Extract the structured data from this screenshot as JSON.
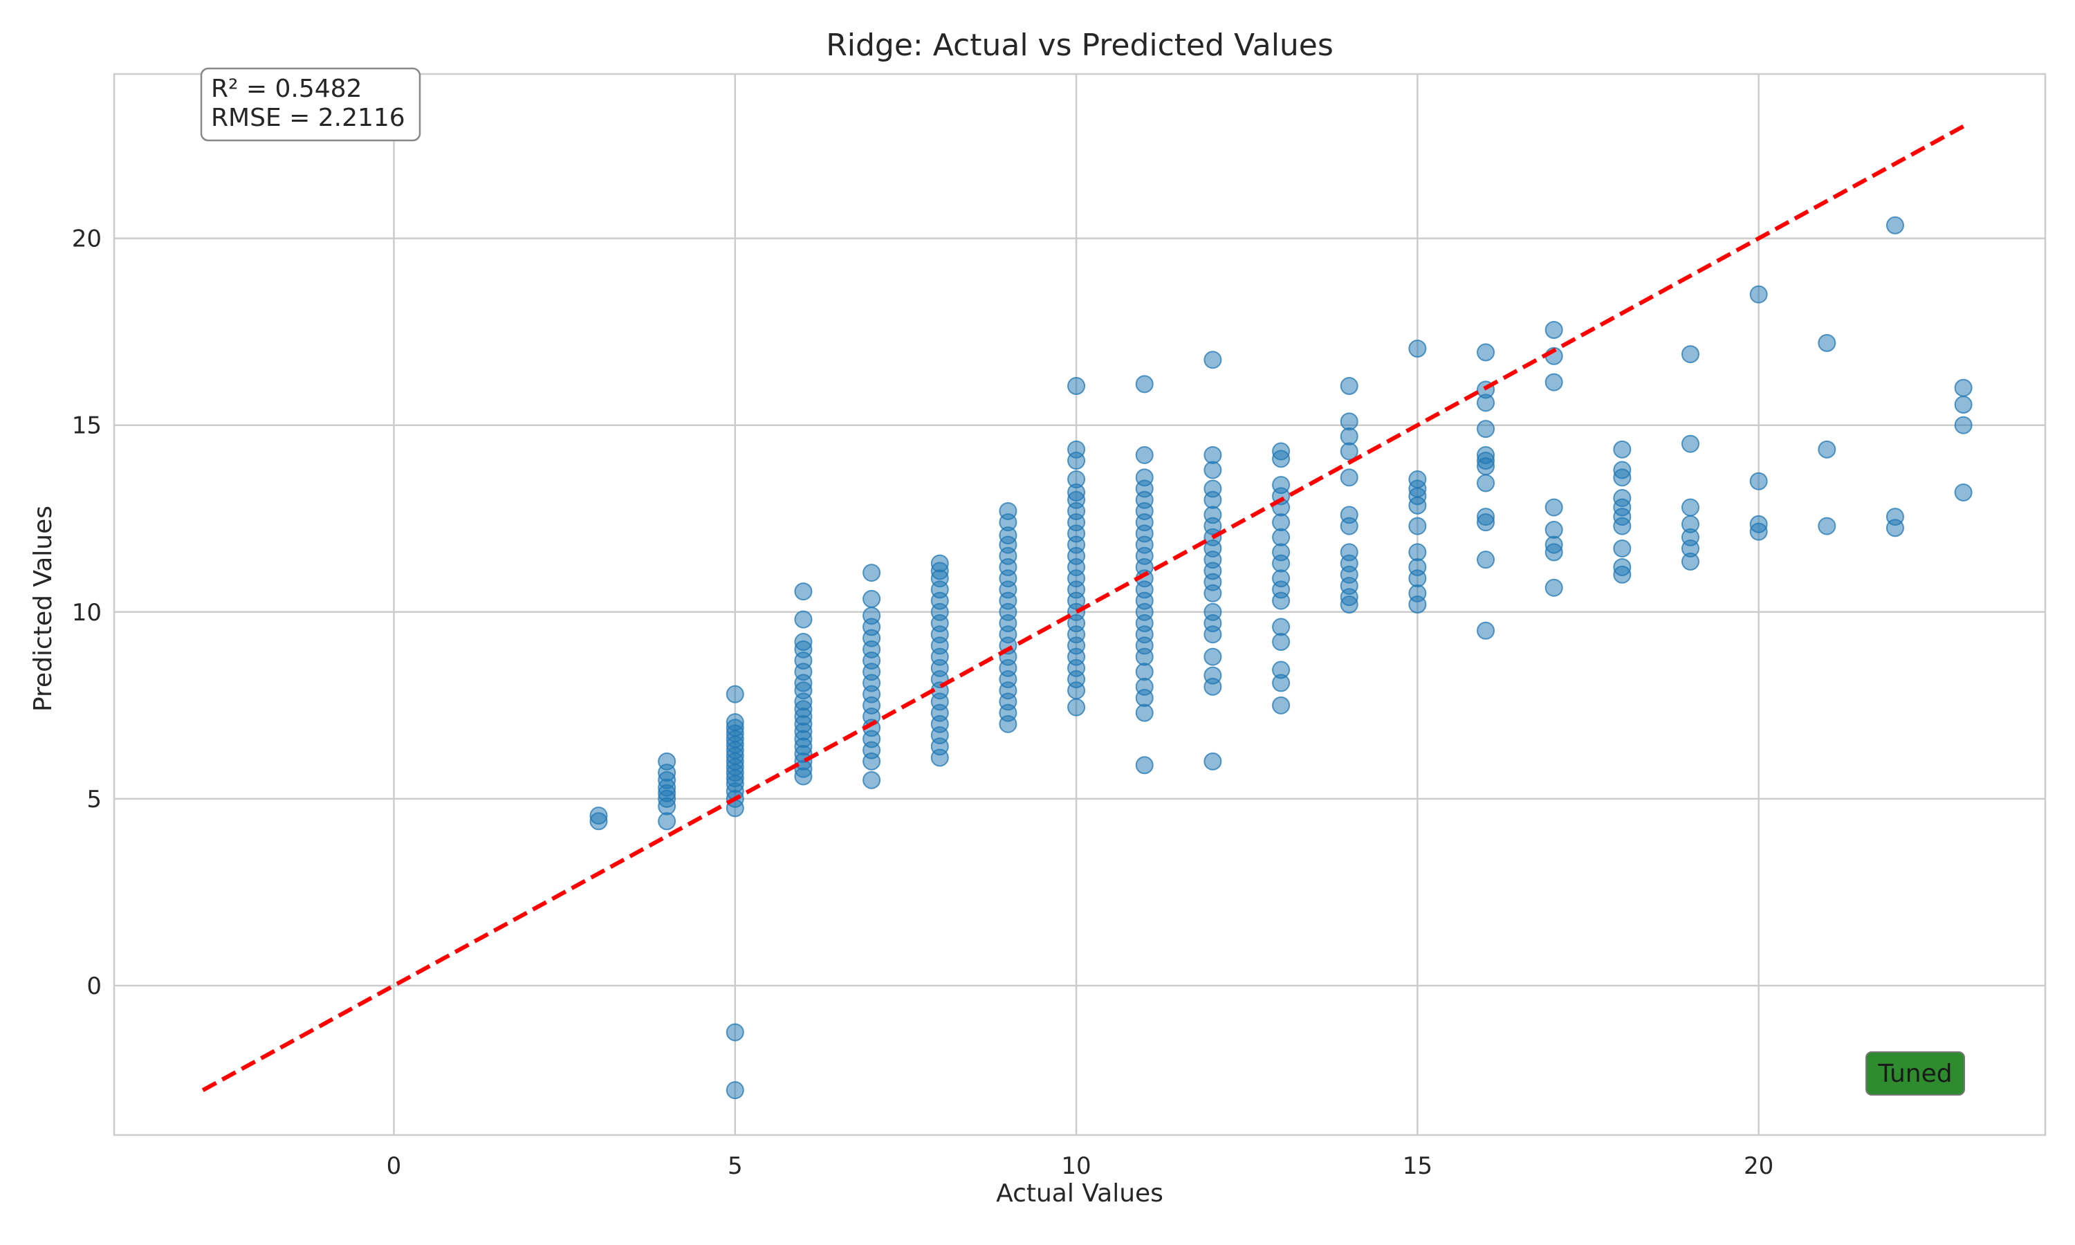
{
  "chart_data": {
    "type": "scatter",
    "title": "Ridge: Actual vs Predicted Values",
    "xlabel": "Actual Values",
    "ylabel": "Predicted Values",
    "xlim": [
      -4.1,
      24.2
    ],
    "ylim": [
      -4.0,
      24.4
    ],
    "xticks": [
      0,
      5,
      10,
      15,
      20
    ],
    "yticks": [
      0,
      5,
      10,
      15,
      20
    ],
    "grid": true,
    "point_color": "#1f77b4",
    "reference_line": {
      "style": "dashed",
      "color": "#ff0000",
      "x": [
        -2.8,
        23
      ],
      "y": [
        -2.8,
        23
      ]
    },
    "annotations": {
      "r2": "R² = 0.5482",
      "rmse": "RMSE = 2.2116",
      "badge": "Tuned",
      "badge_color": "#2e8b2e"
    },
    "series": [
      {
        "values": [
          [
            3,
            4.4
          ],
          [
            3,
            4.55
          ],
          [
            4,
            4.4
          ],
          [
            4,
            4.8
          ],
          [
            4,
            5.0
          ],
          [
            4,
            5.15
          ],
          [
            4,
            5.3
          ],
          [
            4,
            5.5
          ],
          [
            4,
            5.7
          ],
          [
            4,
            6.0
          ],
          [
            5,
            -1.25
          ],
          [
            5,
            -2.8
          ],
          [
            5,
            4.75
          ],
          [
            5,
            5.0
          ],
          [
            5,
            5.2
          ],
          [
            5,
            5.4
          ],
          [
            5,
            5.55
          ],
          [
            5,
            5.7
          ],
          [
            5,
            5.85
          ],
          [
            5,
            6.0
          ],
          [
            5,
            6.15
          ],
          [
            5,
            6.3
          ],
          [
            5,
            6.45
          ],
          [
            5,
            6.6
          ],
          [
            5,
            6.75
          ],
          [
            5,
            6.9
          ],
          [
            5,
            7.05
          ],
          [
            5,
            7.8
          ],
          [
            6,
            5.6
          ],
          [
            6,
            5.8
          ],
          [
            6,
            6.0
          ],
          [
            6,
            6.2
          ],
          [
            6,
            6.4
          ],
          [
            6,
            6.6
          ],
          [
            6,
            6.8
          ],
          [
            6,
            7.0
          ],
          [
            6,
            7.2
          ],
          [
            6,
            7.4
          ],
          [
            6,
            7.6
          ],
          [
            6,
            7.9
          ],
          [
            6,
            8.1
          ],
          [
            6,
            8.4
          ],
          [
            6,
            8.7
          ],
          [
            6,
            9.0
          ],
          [
            6,
            9.2
          ],
          [
            6,
            9.8
          ],
          [
            6,
            10.55
          ],
          [
            7,
            5.5
          ],
          [
            7,
            6.0
          ],
          [
            7,
            6.3
          ],
          [
            7,
            6.6
          ],
          [
            7,
            6.9
          ],
          [
            7,
            7.2
          ],
          [
            7,
            7.5
          ],
          [
            7,
            7.8
          ],
          [
            7,
            8.1
          ],
          [
            7,
            8.4
          ],
          [
            7,
            8.7
          ],
          [
            7,
            9.0
          ],
          [
            7,
            9.3
          ],
          [
            7,
            9.6
          ],
          [
            7,
            9.9
          ],
          [
            7,
            10.35
          ],
          [
            7,
            11.05
          ],
          [
            8,
            6.1
          ],
          [
            8,
            6.4
          ],
          [
            8,
            6.7
          ],
          [
            8,
            7.0
          ],
          [
            8,
            7.3
          ],
          [
            8,
            7.6
          ],
          [
            8,
            7.9
          ],
          [
            8,
            8.2
          ],
          [
            8,
            8.5
          ],
          [
            8,
            8.8
          ],
          [
            8,
            9.1
          ],
          [
            8,
            9.4
          ],
          [
            8,
            9.7
          ],
          [
            8,
            10.0
          ],
          [
            8,
            10.3
          ],
          [
            8,
            10.6
          ],
          [
            8,
            10.9
          ],
          [
            8,
            11.1
          ],
          [
            8,
            11.3
          ],
          [
            9,
            7.0
          ],
          [
            9,
            7.3
          ],
          [
            9,
            7.6
          ],
          [
            9,
            7.9
          ],
          [
            9,
            8.2
          ],
          [
            9,
            8.5
          ],
          [
            9,
            8.8
          ],
          [
            9,
            9.1
          ],
          [
            9,
            9.4
          ],
          [
            9,
            9.7
          ],
          [
            9,
            10.0
          ],
          [
            9,
            10.3
          ],
          [
            9,
            10.6
          ],
          [
            9,
            10.9
          ],
          [
            9,
            11.2
          ],
          [
            9,
            11.5
          ],
          [
            9,
            11.8
          ],
          [
            9,
            12.05
          ],
          [
            9,
            12.4
          ],
          [
            9,
            12.7
          ],
          [
            10,
            7.45
          ],
          [
            10,
            7.9
          ],
          [
            10,
            8.2
          ],
          [
            10,
            8.5
          ],
          [
            10,
            8.8
          ],
          [
            10,
            9.1
          ],
          [
            10,
            9.4
          ],
          [
            10,
            9.7
          ],
          [
            10,
            10.0
          ],
          [
            10,
            10.3
          ],
          [
            10,
            10.6
          ],
          [
            10,
            10.9
          ],
          [
            10,
            11.2
          ],
          [
            10,
            11.5
          ],
          [
            10,
            11.8
          ],
          [
            10,
            12.1
          ],
          [
            10,
            12.4
          ],
          [
            10,
            12.7
          ],
          [
            10,
            13.0
          ],
          [
            10,
            13.2
          ],
          [
            10,
            13.55
          ],
          [
            10,
            14.05
          ],
          [
            10,
            14.35
          ],
          [
            10,
            16.05
          ],
          [
            11,
            5.9
          ],
          [
            11,
            7.3
          ],
          [
            11,
            7.7
          ],
          [
            11,
            8.0
          ],
          [
            11,
            8.4
          ],
          [
            11,
            8.8
          ],
          [
            11,
            9.1
          ],
          [
            11,
            9.4
          ],
          [
            11,
            9.7
          ],
          [
            11,
            10.0
          ],
          [
            11,
            10.3
          ],
          [
            11,
            10.6
          ],
          [
            11,
            10.9
          ],
          [
            11,
            11.2
          ],
          [
            11,
            11.5
          ],
          [
            11,
            11.8
          ],
          [
            11,
            12.1
          ],
          [
            11,
            12.4
          ],
          [
            11,
            12.7
          ],
          [
            11,
            13.0
          ],
          [
            11,
            13.3
          ],
          [
            11,
            13.6
          ],
          [
            11,
            14.2
          ],
          [
            11,
            16.1
          ],
          [
            12,
            6.0
          ],
          [
            12,
            8.0
          ],
          [
            12,
            8.3
          ],
          [
            12,
            8.8
          ],
          [
            12,
            9.4
          ],
          [
            12,
            9.7
          ],
          [
            12,
            10.0
          ],
          [
            12,
            10.5
          ],
          [
            12,
            10.8
          ],
          [
            12,
            11.1
          ],
          [
            12,
            11.4
          ],
          [
            12,
            11.7
          ],
          [
            12,
            12.0
          ],
          [
            12,
            12.3
          ],
          [
            12,
            12.6
          ],
          [
            12,
            13.0
          ],
          [
            12,
            13.3
          ],
          [
            12,
            13.8
          ],
          [
            12,
            14.2
          ],
          [
            12,
            16.75
          ],
          [
            13,
            7.5
          ],
          [
            13,
            8.1
          ],
          [
            13,
            8.45
          ],
          [
            13,
            9.2
          ],
          [
            13,
            9.6
          ],
          [
            13,
            10.3
          ],
          [
            13,
            10.6
          ],
          [
            13,
            10.9
          ],
          [
            13,
            11.3
          ],
          [
            13,
            11.6
          ],
          [
            13,
            12.0
          ],
          [
            13,
            12.4
          ],
          [
            13,
            12.8
          ],
          [
            13,
            13.1
          ],
          [
            13,
            13.4
          ],
          [
            13,
            14.1
          ],
          [
            13,
            14.3
          ],
          [
            14,
            10.2
          ],
          [
            14,
            10.4
          ],
          [
            14,
            10.7
          ],
          [
            14,
            11.0
          ],
          [
            14,
            11.3
          ],
          [
            14,
            11.6
          ],
          [
            14,
            12.3
          ],
          [
            14,
            12.6
          ],
          [
            14,
            13.6
          ],
          [
            14,
            14.3
          ],
          [
            14,
            14.7
          ],
          [
            14,
            15.1
          ],
          [
            14,
            16.05
          ],
          [
            15,
            10.2
          ],
          [
            15,
            10.5
          ],
          [
            15,
            10.9
          ],
          [
            15,
            11.2
          ],
          [
            15,
            11.6
          ],
          [
            15,
            12.3
          ],
          [
            15,
            12.85
          ],
          [
            15,
            13.1
          ],
          [
            15,
            13.3
          ],
          [
            15,
            13.55
          ],
          [
            15,
            17.05
          ],
          [
            16,
            9.5
          ],
          [
            16,
            11.4
          ],
          [
            16,
            12.4
          ],
          [
            16,
            12.55
          ],
          [
            16,
            13.45
          ],
          [
            16,
            13.9
          ],
          [
            16,
            14.05
          ],
          [
            16,
            14.2
          ],
          [
            16,
            14.9
          ],
          [
            16,
            15.6
          ],
          [
            16,
            15.95
          ],
          [
            16,
            16.95
          ],
          [
            17,
            10.65
          ],
          [
            17,
            11.6
          ],
          [
            17,
            11.8
          ],
          [
            17,
            12.2
          ],
          [
            17,
            12.8
          ],
          [
            17,
            16.15
          ],
          [
            17,
            16.85
          ],
          [
            17,
            17.55
          ],
          [
            18,
            11.0
          ],
          [
            18,
            11.2
          ],
          [
            18,
            11.7
          ],
          [
            18,
            12.3
          ],
          [
            18,
            12.55
          ],
          [
            18,
            12.8
          ],
          [
            18,
            13.05
          ],
          [
            18,
            13.6
          ],
          [
            18,
            13.8
          ],
          [
            18,
            14.35
          ],
          [
            19,
            11.35
          ],
          [
            19,
            11.7
          ],
          [
            19,
            12.0
          ],
          [
            19,
            12.35
          ],
          [
            19,
            12.8
          ],
          [
            19,
            14.5
          ],
          [
            19,
            16.9
          ],
          [
            20,
            12.15
          ],
          [
            20,
            12.35
          ],
          [
            20,
            13.5
          ],
          [
            20,
            18.5
          ],
          [
            21,
            12.3
          ],
          [
            21,
            14.35
          ],
          [
            21,
            17.2
          ],
          [
            22,
            12.25
          ],
          [
            22,
            12.55
          ],
          [
            22,
            20.35
          ],
          [
            23,
            13.2
          ],
          [
            23,
            15.0
          ],
          [
            23,
            15.55
          ],
          [
            23,
            16.0
          ]
        ]
      }
    ]
  }
}
